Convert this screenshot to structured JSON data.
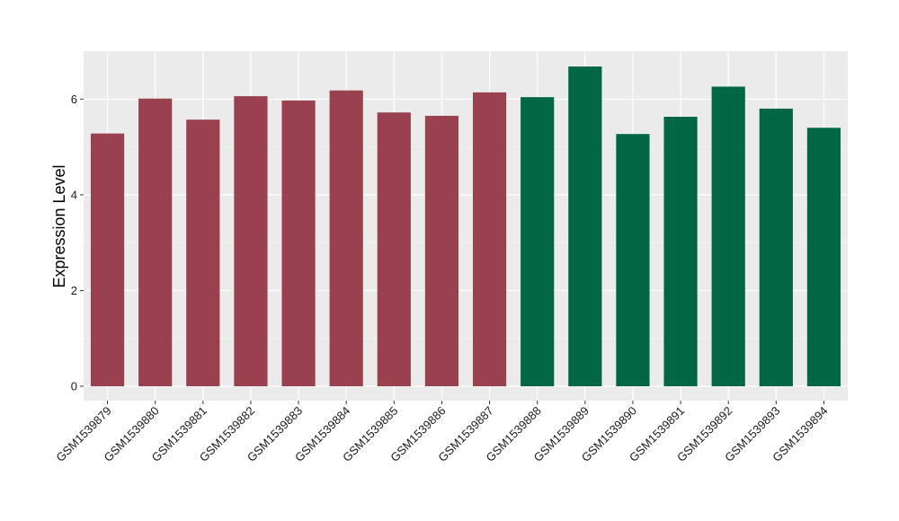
{
  "chart_data": {
    "type": "bar",
    "title": "",
    "xlabel": "",
    "ylabel": "Expression Level",
    "ylim": [
      -0.3,
      7.0
    ],
    "yticks": [
      0,
      2,
      4,
      6
    ],
    "grid": true,
    "panel_background": "#ebebeb",
    "categories": [
      "GSM1539879",
      "GSM1539880",
      "GSM1539881",
      "GSM1539882",
      "GSM1539883",
      "GSM1539884",
      "GSM1539885",
      "GSM1539886",
      "GSM1539887",
      "GSM1539888",
      "GSM1539889",
      "GSM1539890",
      "GSM1539891",
      "GSM1539892",
      "GSM1539893",
      "GSM1539894"
    ],
    "values": [
      5.28,
      6.01,
      5.57,
      6.06,
      5.97,
      6.18,
      5.72,
      5.65,
      6.14,
      6.04,
      6.68,
      5.27,
      5.63,
      6.26,
      5.8,
      5.4
    ],
    "bar_colors": [
      "#99414f",
      "#99414f",
      "#99414f",
      "#99414f",
      "#99414f",
      "#99414f",
      "#99414f",
      "#99414f",
      "#99414f",
      "#006644",
      "#006644",
      "#006644",
      "#006644",
      "#006644",
      "#006644",
      "#006644"
    ]
  }
}
